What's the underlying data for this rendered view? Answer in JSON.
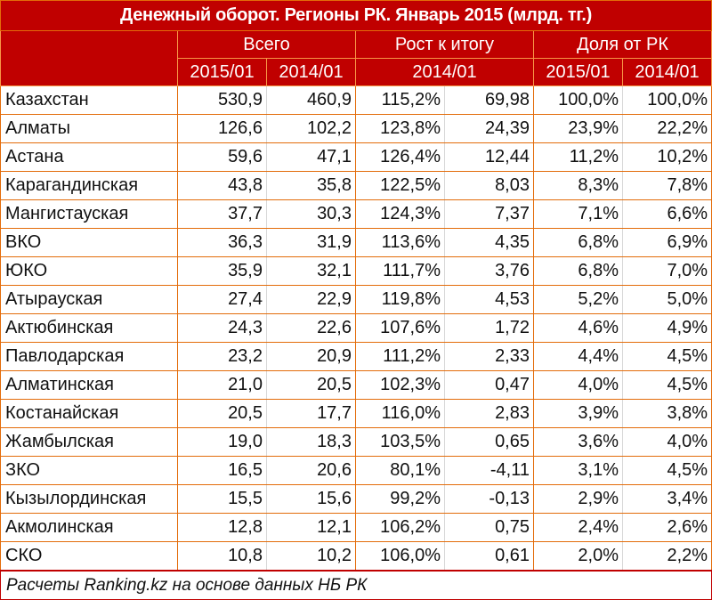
{
  "title": "Денежный оборот. Регионы РК. Январь 2015 (млрд. тг.)",
  "header": {
    "groups": [
      "Всего",
      "Рост к итогу",
      "Доля от РК"
    ],
    "periods": [
      "2015/01",
      "2014/01",
      "2014/01",
      "2015/01",
      "2014/01"
    ]
  },
  "colors": {
    "header_bg": "#c00000",
    "header_text": "#ffffff",
    "border_accent": "#e36c0a"
  },
  "rows": [
    {
      "region": "Казахстан",
      "total_2015": "530,9",
      "total_2014": "460,9",
      "growth_pct": "115,2%",
      "growth_abs": "69,98",
      "share_2015": "100,0%",
      "share_2014": "100,0%"
    },
    {
      "region": "Алматы",
      "total_2015": "126,6",
      "total_2014": "102,2",
      "growth_pct": "123,8%",
      "growth_abs": "24,39",
      "share_2015": "23,9%",
      "share_2014": "22,2%"
    },
    {
      "region": "Астана",
      "total_2015": "59,6",
      "total_2014": "47,1",
      "growth_pct": "126,4%",
      "growth_abs": "12,44",
      "share_2015": "11,2%",
      "share_2014": "10,2%"
    },
    {
      "region": "Карагандинская",
      "total_2015": "43,8",
      "total_2014": "35,8",
      "growth_pct": "122,5%",
      "growth_abs": "8,03",
      "share_2015": "8,3%",
      "share_2014": "7,8%"
    },
    {
      "region": "Мангистауская",
      "total_2015": "37,7",
      "total_2014": "30,3",
      "growth_pct": "124,3%",
      "growth_abs": "7,37",
      "share_2015": "7,1%",
      "share_2014": "6,6%"
    },
    {
      "region": "ВКО",
      "total_2015": "36,3",
      "total_2014": "31,9",
      "growth_pct": "113,6%",
      "growth_abs": "4,35",
      "share_2015": "6,8%",
      "share_2014": "6,9%"
    },
    {
      "region": "ЮКО",
      "total_2015": "35,9",
      "total_2014": "32,1",
      "growth_pct": "111,7%",
      "growth_abs": "3,76",
      "share_2015": "6,8%",
      "share_2014": "7,0%"
    },
    {
      "region": "Атырауская",
      "total_2015": "27,4",
      "total_2014": "22,9",
      "growth_pct": "119,8%",
      "growth_abs": "4,53",
      "share_2015": "5,2%",
      "share_2014": "5,0%"
    },
    {
      "region": "Актюбинская",
      "total_2015": "24,3",
      "total_2014": "22,6",
      "growth_pct": "107,6%",
      "growth_abs": "1,72",
      "share_2015": "4,6%",
      "share_2014": "4,9%"
    },
    {
      "region": "Павлодарская",
      "total_2015": "23,2",
      "total_2014": "20,9",
      "growth_pct": "111,2%",
      "growth_abs": "2,33",
      "share_2015": "4,4%",
      "share_2014": "4,5%"
    },
    {
      "region": "Алматинская",
      "total_2015": "21,0",
      "total_2014": "20,5",
      "growth_pct": "102,3%",
      "growth_abs": "0,47",
      "share_2015": "4,0%",
      "share_2014": "4,5%"
    },
    {
      "region": "Костанайская",
      "total_2015": "20,5",
      "total_2014": "17,7",
      "growth_pct": "116,0%",
      "growth_abs": "2,83",
      "share_2015": "3,9%",
      "share_2014": "3,8%"
    },
    {
      "region": "Жамбылская",
      "total_2015": "19,0",
      "total_2014": "18,3",
      "growth_pct": "103,5%",
      "growth_abs": "0,65",
      "share_2015": "3,6%",
      "share_2014": "4,0%"
    },
    {
      "region": "ЗКО",
      "total_2015": "16,5",
      "total_2014": "20,6",
      "growth_pct": "80,1%",
      "growth_abs": "-4,11",
      "share_2015": "3,1%",
      "share_2014": "4,5%"
    },
    {
      "region": "Кызылординская",
      "total_2015": "15,5",
      "total_2014": "15,6",
      "growth_pct": "99,2%",
      "growth_abs": "-0,13",
      "share_2015": "2,9%",
      "share_2014": "3,4%"
    },
    {
      "region": "Акмолинская",
      "total_2015": "12,8",
      "total_2014": "12,1",
      "growth_pct": "106,2%",
      "growth_abs": "0,75",
      "share_2015": "2,4%",
      "share_2014": "2,6%"
    },
    {
      "region": "СКО",
      "total_2015": "10,8",
      "total_2014": "10,2",
      "growth_pct": "106,0%",
      "growth_abs": "0,61",
      "share_2015": "2,0%",
      "share_2014": "2,2%"
    }
  ],
  "footer": "Расчеты Ranking.kz на основе данных НБ РК"
}
